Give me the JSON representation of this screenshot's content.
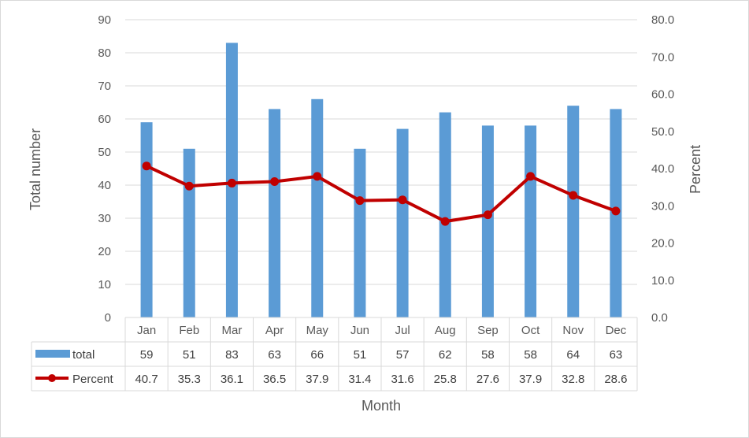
{
  "chart_data": {
    "type": "bar",
    "categories": [
      "Jan",
      "Feb",
      "Mar",
      "Apr",
      "May",
      "Jun",
      "Jul",
      "Aug",
      "Sep",
      "Oct",
      "Nov",
      "Dec"
    ],
    "series": [
      {
        "name": "total",
        "type": "bar",
        "axis": "left",
        "color": "#5b9bd5",
        "values": [
          59,
          51,
          83,
          63,
          66,
          51,
          57,
          62,
          58,
          58,
          64,
          63
        ]
      },
      {
        "name": "Percent",
        "type": "line",
        "axis": "right",
        "color": "#c00000",
        "values": [
          40.7,
          35.3,
          36.1,
          36.5,
          37.9,
          31.4,
          31.6,
          25.8,
          27.6,
          37.9,
          32.8,
          28.6
        ],
        "labels": [
          "40.7",
          "35.3",
          "36.1",
          "36.5",
          "37.9",
          "31.4",
          "31.6",
          "25.8",
          "27.6",
          "37.9",
          "32.8",
          "28.6"
        ]
      }
    ],
    "xlabel": "Month",
    "ylabel": "Total number",
    "y2label": "Percent",
    "ylim": [
      0,
      90
    ],
    "y2lim": [
      0,
      80
    ],
    "yticks": [
      "0",
      "10",
      "20",
      "30",
      "40",
      "50",
      "60",
      "70",
      "80",
      "90"
    ],
    "y2ticks": [
      "0.0",
      "10.0",
      "20.0",
      "30.0",
      "40.0",
      "50.0",
      "60.0",
      "70.0",
      "80.0"
    ],
    "grid": true,
    "legend": "data-table"
  }
}
